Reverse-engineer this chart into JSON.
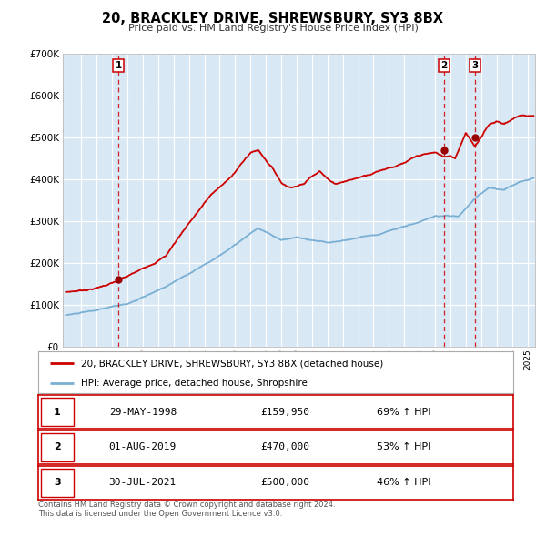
{
  "title": "20, BRACKLEY DRIVE, SHREWSBURY, SY3 8BX",
  "subtitle": "Price paid vs. HM Land Registry's House Price Index (HPI)",
  "plot_bg_color": "#d8e8f5",
  "outer_bg_color": "#ffffff",
  "red_line_color": "#cc0000",
  "blue_line_color": "#7aafd4",
  "sale_marker_color": "#990000",
  "dashed_line_color": "#cc0000",
  "ylim": [
    0,
    700000
  ],
  "yticks": [
    0,
    100000,
    200000,
    300000,
    400000,
    500000,
    600000,
    700000
  ],
  "xmin": 1994.8,
  "xmax": 2025.5,
  "sales": [
    {
      "label": "1",
      "date_str": "29-MAY-1998",
      "year": 1998.41,
      "price": 159950
    },
    {
      "label": "2",
      "date_str": "01-AUG-2019",
      "year": 2019.58,
      "price": 470000
    },
    {
      "label": "3",
      "date_str": "30-JUL-2021",
      "year": 2021.58,
      "price": 500000
    }
  ],
  "legend_line1": "20, BRACKLEY DRIVE, SHREWSBURY, SY3 8BX (detached house)",
  "legend_line2": "HPI: Average price, detached house, Shropshire",
  "table_rows": [
    {
      "num": "1",
      "date": "29-MAY-1998",
      "price": "£159,950",
      "hpi": "69% ↑ HPI"
    },
    {
      "num": "2",
      "date": "01-AUG-2019",
      "price": "£470,000",
      "hpi": "53% ↑ HPI"
    },
    {
      "num": "3",
      "date": "30-JUL-2021",
      "price": "£500,000",
      "hpi": "46% ↑ HPI"
    }
  ],
  "footer_line1": "Contains HM Land Registry data © Crown copyright and database right 2024.",
  "footer_line2": "This data is licensed under the Open Government Licence v3.0."
}
